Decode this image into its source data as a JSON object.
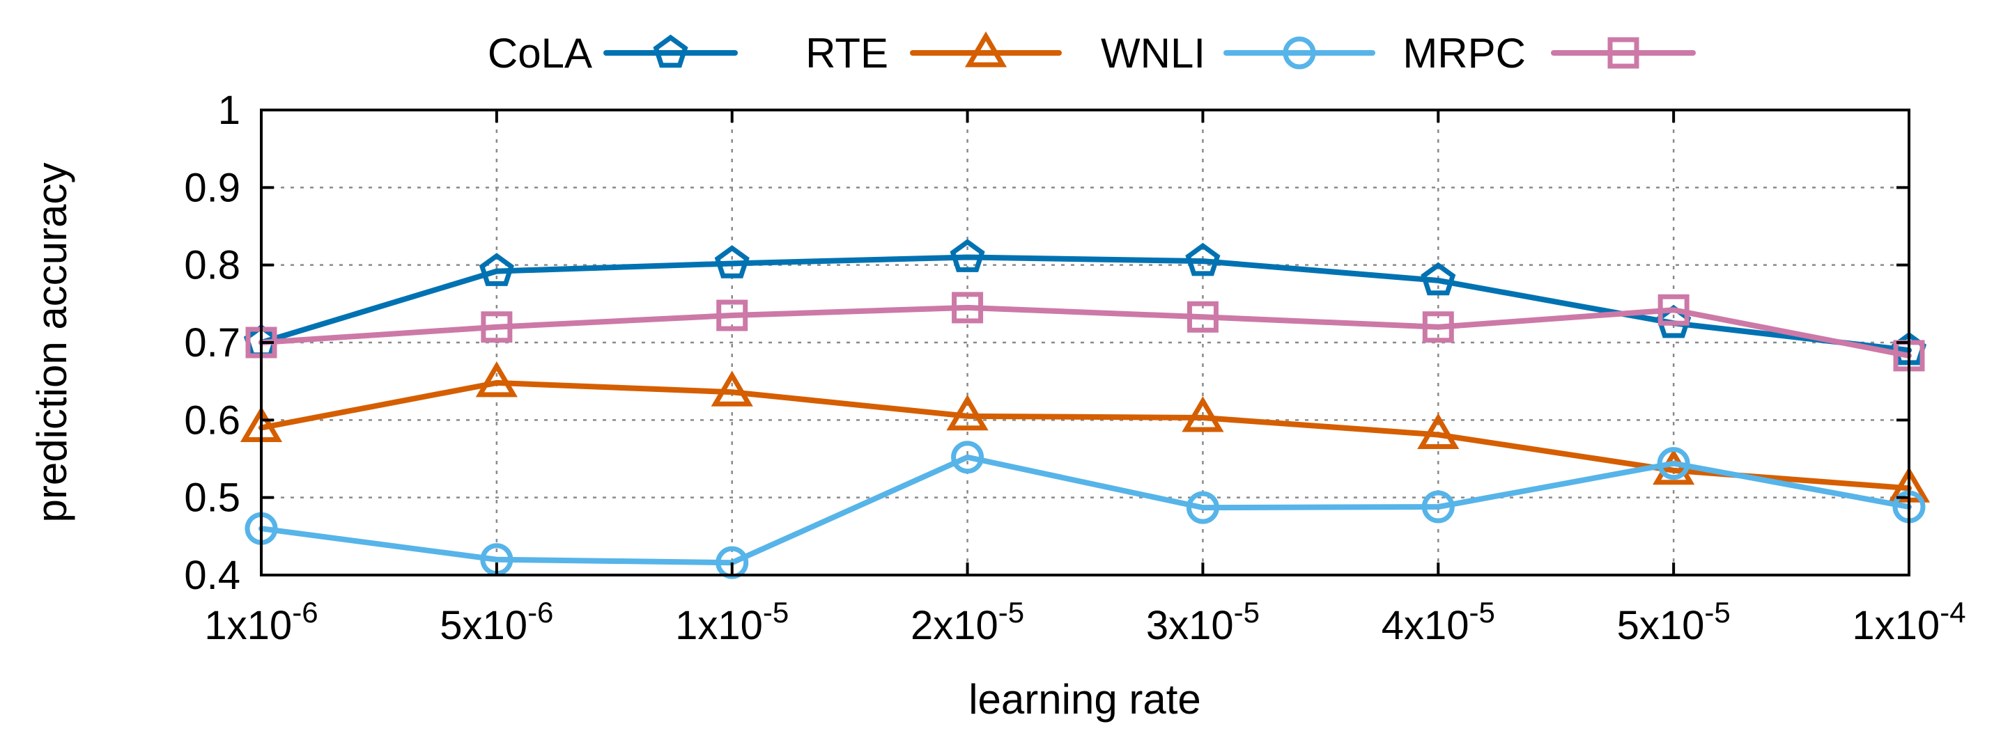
{
  "chart_data": {
    "type": "line",
    "title": "",
    "xlabel": "learning rate",
    "ylabel": "prediction accuracy",
    "ylim": [
      0.4,
      1.0
    ],
    "yticks": [
      "0.4",
      "0.5",
      "0.6",
      "0.7",
      "0.8",
      "0.9",
      "1"
    ],
    "grid": true,
    "legend_position": "top",
    "categories": [
      {
        "base": "1x10",
        "exp": "-6"
      },
      {
        "base": "5x10",
        "exp": "-6"
      },
      {
        "base": "1x10",
        "exp": "-5"
      },
      {
        "base": "2x10",
        "exp": "-5"
      },
      {
        "base": "3x10",
        "exp": "-5"
      },
      {
        "base": "4x10",
        "exp": "-5"
      },
      {
        "base": "5x10",
        "exp": "-5"
      },
      {
        "base": "1x10",
        "exp": "-4"
      }
    ],
    "series": [
      {
        "name": "CoLA",
        "color": "#0072b2",
        "marker": "pentagon",
        "values": [
          0.7,
          0.792,
          0.802,
          0.81,
          0.805,
          0.78,
          0.725,
          0.69
        ]
      },
      {
        "name": "RTE",
        "color": "#d55e00",
        "marker": "triangle",
        "values": [
          0.59,
          0.648,
          0.636,
          0.605,
          0.603,
          0.581,
          0.535,
          0.512
        ]
      },
      {
        "name": "WNLI",
        "color": "#56b4e9",
        "marker": "circle",
        "values": [
          0.46,
          0.42,
          0.416,
          0.552,
          0.487,
          0.488,
          0.544,
          0.488
        ]
      },
      {
        "name": "MRPC",
        "color": "#cc79a7",
        "marker": "square",
        "values": [
          0.7,
          0.72,
          0.735,
          0.745,
          0.733,
          0.72,
          0.742,
          0.683
        ]
      }
    ]
  }
}
